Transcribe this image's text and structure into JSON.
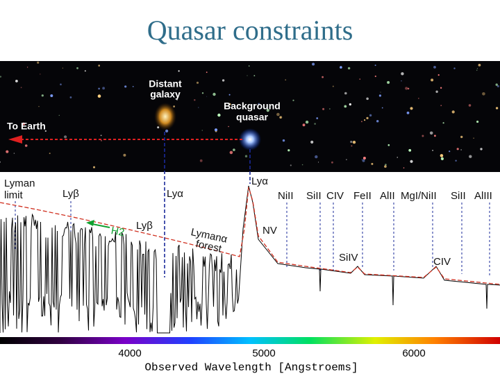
{
  "title": "Quasar constraints",
  "image": {
    "galaxy": [
      "Distant",
      "galaxy"
    ],
    "quasar": [
      "Background",
      "quasar"
    ],
    "earth": "To Earth"
  },
  "spectrum": {
    "top_labels": [
      "Lyman",
      "limit",
      "Lyβ",
      "Lyα",
      "Lyα",
      "NiII",
      "SiII",
      "CIV",
      "FeII",
      "AlII",
      "MgI/NiII",
      "SiII",
      "AlIII"
    ],
    "h2": "H2",
    "lyb": "Lyβ",
    "forest": [
      "Lymanα",
      "forest"
    ],
    "nv": "NV",
    "siiv": "SiIV",
    "civ": "CIV"
  },
  "axis": {
    "ticks": [
      "4000",
      "5000",
      "6000"
    ],
    "label": "Observed Wavelength [Angstroems]"
  }
}
